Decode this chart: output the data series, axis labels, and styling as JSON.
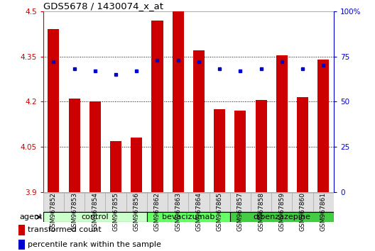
{
  "title": "GDS5678 / 1430074_x_at",
  "samples": [
    "GSM967852",
    "GSM967853",
    "GSM967854",
    "GSM967855",
    "GSM967856",
    "GSM967862",
    "GSM967863",
    "GSM967864",
    "GSM967865",
    "GSM967857",
    "GSM967858",
    "GSM967859",
    "GSM967860",
    "GSM967861"
  ],
  "bar_values": [
    4.44,
    4.21,
    4.2,
    4.07,
    4.08,
    4.47,
    4.5,
    4.37,
    4.175,
    4.17,
    4.205,
    4.355,
    4.215,
    4.34
  ],
  "percentile_values": [
    72,
    68,
    67,
    65,
    67,
    73,
    73,
    72,
    68,
    67,
    68,
    72,
    68,
    70
  ],
  "bar_bottom": 3.9,
  "ylim_left": [
    3.9,
    4.5
  ],
  "ylim_right": [
    0,
    100
  ],
  "yticks_left": [
    3.9,
    4.05,
    4.2,
    4.35,
    4.5
  ],
  "ytick_labels_left": [
    "3.9",
    "4.05",
    "4.2",
    "4.35",
    "4.5"
  ],
  "yticks_right": [
    0,
    25,
    50,
    75,
    100
  ],
  "ytick_labels_right": [
    "0",
    "25",
    "50",
    "75",
    "100%"
  ],
  "bar_color": "#cc0000",
  "percentile_color": "#0000cc",
  "groups": [
    {
      "label": "control",
      "start": 0,
      "end": 5,
      "color": "#ccffcc"
    },
    {
      "label": "bevacizumab",
      "start": 5,
      "end": 9,
      "color": "#66ff66"
    },
    {
      "label": "dibenzazepine",
      "start": 9,
      "end": 14,
      "color": "#44cc44"
    }
  ],
  "agent_label": "agent",
  "legend_bar_label": "transformed count",
  "legend_pct_label": "percentile rank within the sample",
  "bar_width": 0.55,
  "sample_bg_color": "#dddddd",
  "spine_color": "#888888"
}
